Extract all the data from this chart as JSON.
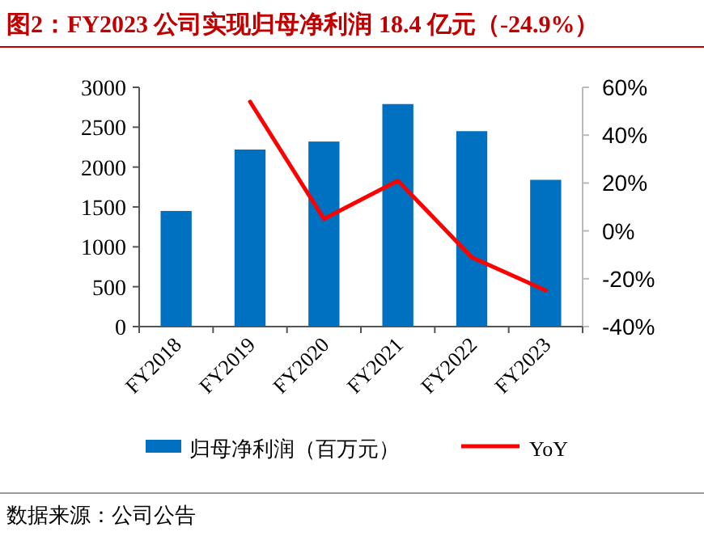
{
  "chart_data": {
    "type": "bar",
    "title": "图2：FY2023 公司实现归母净利润 18.4 亿元（-24.9%）",
    "categories": [
      "FY2018",
      "FY2019",
      "FY2020",
      "FY2021",
      "FY2022",
      "FY2023"
    ],
    "series": [
      {
        "name": "归母净利润（百万元）",
        "color": "#0070c0",
        "values": [
          1450,
          2220,
          2320,
          2790,
          2450,
          1840
        ]
      },
      {
        "name": "YoY",
        "type": "line",
        "axis": "y2",
        "color": "#ff0000",
        "values": [
          null,
          54,
          5,
          21,
          -11,
          -24.9
        ]
      }
    ],
    "ylim": [
      0,
      3000
    ],
    "yticks": [
      0,
      500,
      1000,
      1500,
      2000,
      2500,
      3000
    ],
    "y2lim": [
      -40,
      60
    ],
    "y2ticks": [
      {
        "value": -40,
        "label": "-40%"
      },
      {
        "value": -20,
        "label": "-20%"
      },
      {
        "value": 0,
        "label": "0%"
      },
      {
        "value": 20,
        "label": "20%"
      },
      {
        "value": 40,
        "label": "40%"
      },
      {
        "value": 60,
        "label": "60%"
      }
    ],
    "legend": "bottom",
    "grid": false,
    "annotations": [
      "数据来源：公司公告"
    ]
  }
}
